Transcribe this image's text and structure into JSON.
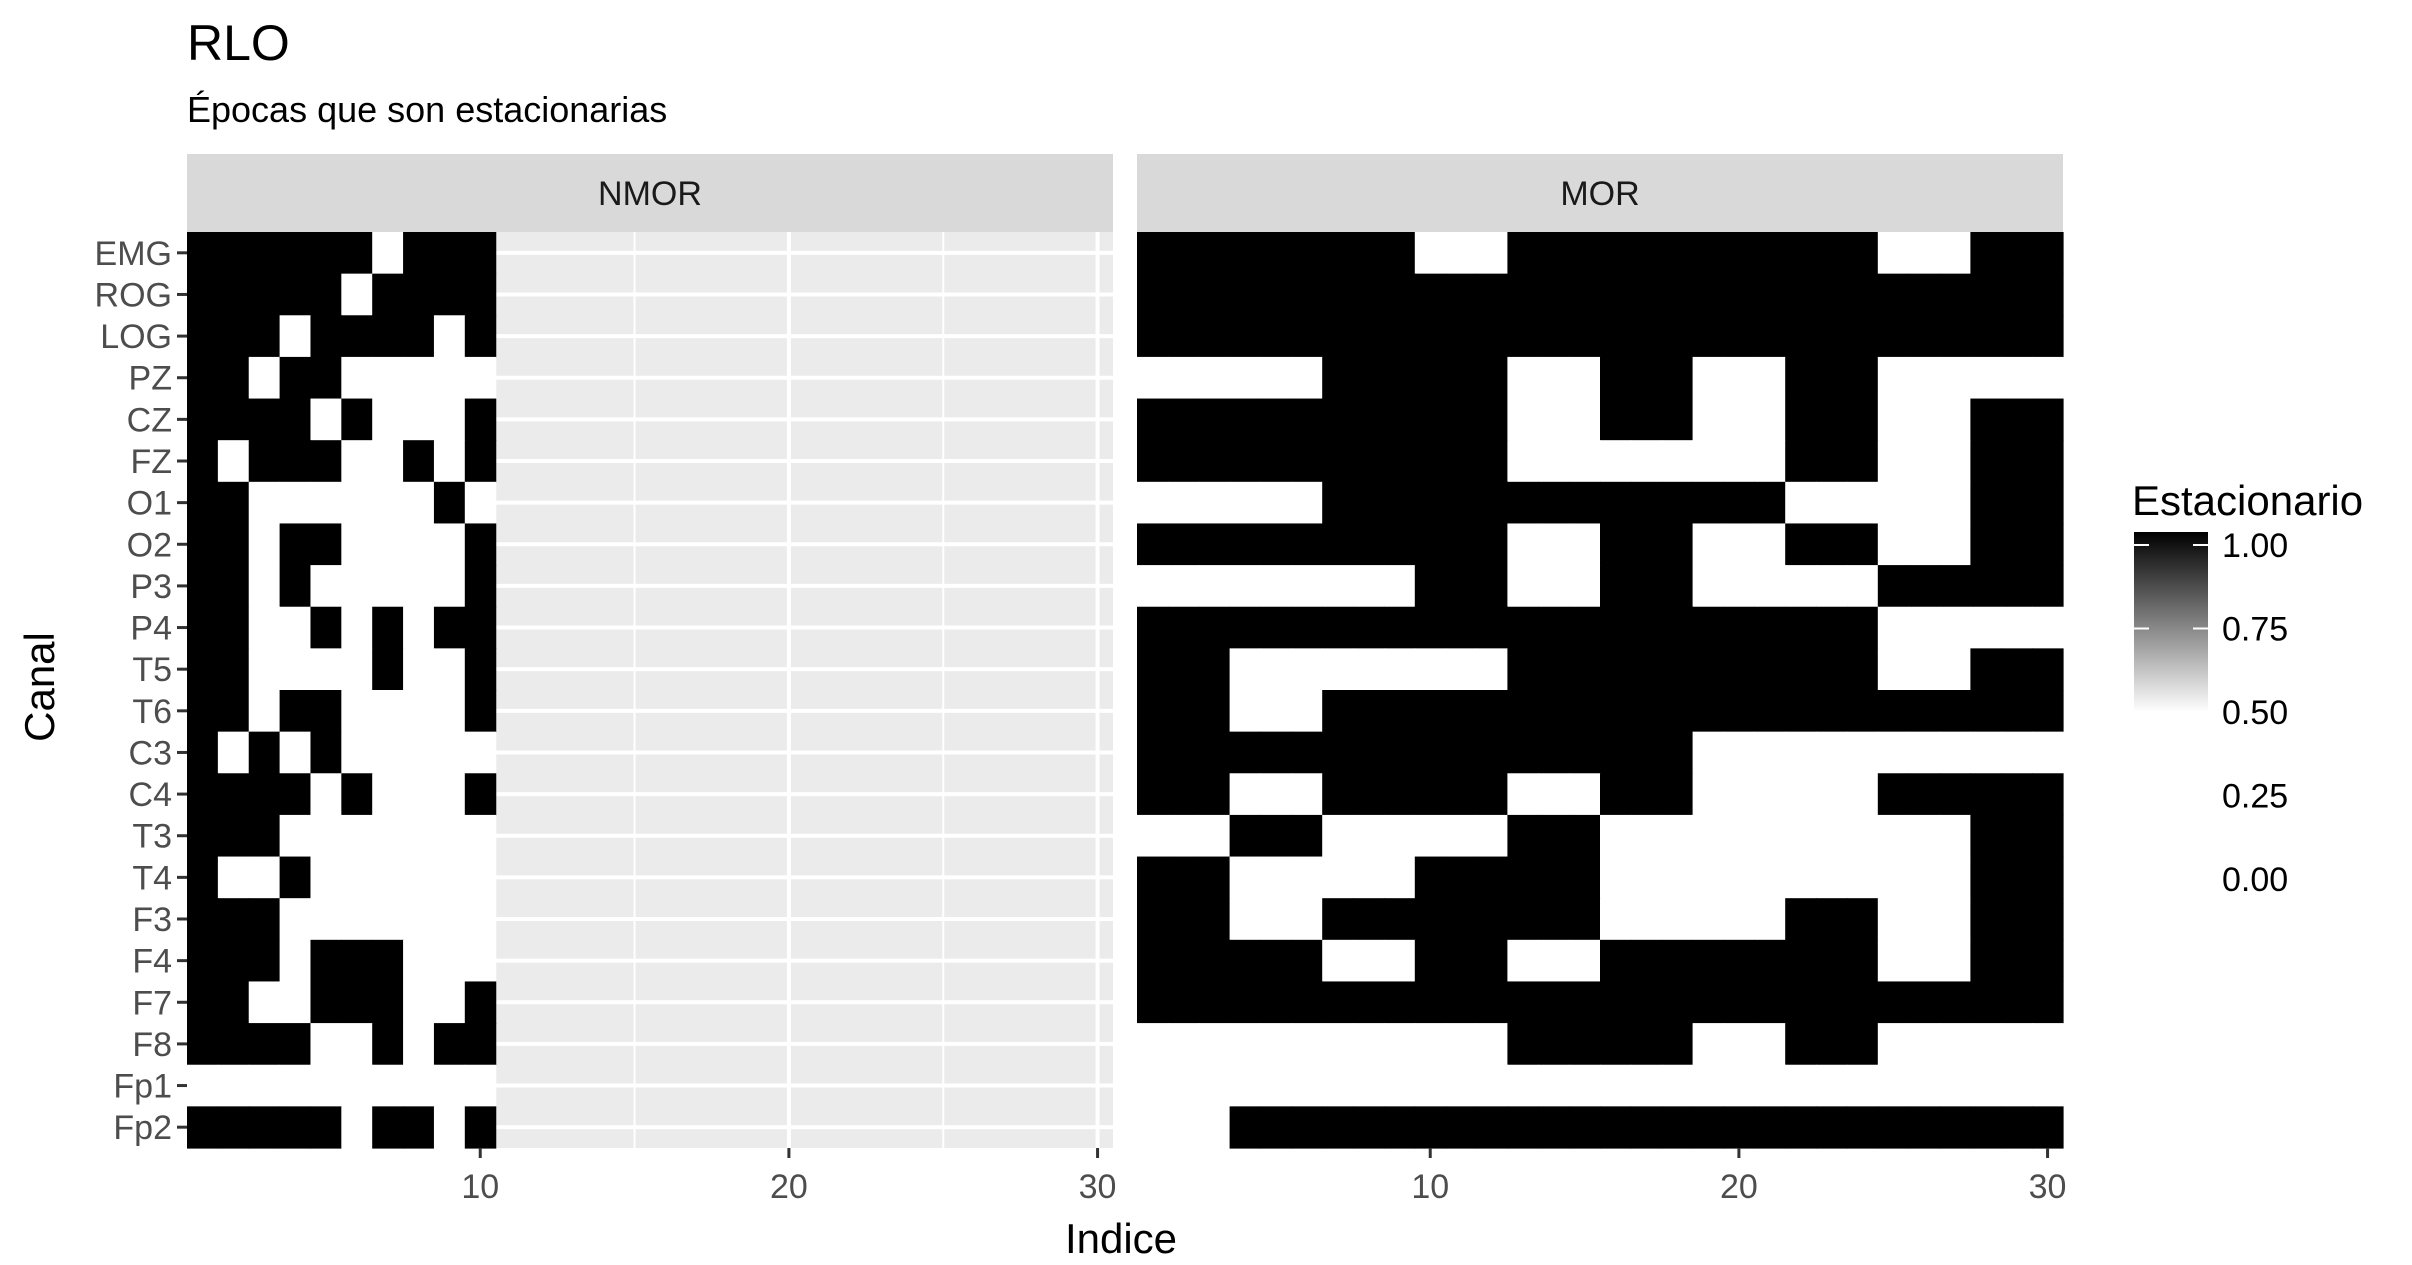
{
  "chart_data": {
    "type": "heatmap",
    "title": "RLO",
    "subtitle": "Épocas que son estacionarias",
    "xlabel": "Indice",
    "ylabel": "Canal",
    "x_ticks": [
      "10",
      "20",
      "30"
    ],
    "x_tick_values": [
      10,
      20,
      30
    ],
    "xlim": [
      0.5,
      30.5
    ],
    "channels": [
      "EMG",
      "ROG",
      "LOG",
      "PZ",
      "CZ",
      "FZ",
      "O1",
      "O2",
      "P3",
      "P4",
      "T5",
      "T6",
      "C3",
      "C4",
      "T3",
      "T4",
      "F3",
      "F4",
      "F7",
      "F8",
      "Fp1",
      "Fp2"
    ],
    "legend": {
      "title": "Estacionario",
      "labels": [
        "1.00",
        "0.75",
        "0.50",
        "0.25",
        "0.00"
      ],
      "gradient_low": "#ffffff",
      "gradient_high": "#000000"
    },
    "colors": {
      "panel_bg": "#ebebeb",
      "strip_bg": "#d9d9d9",
      "grid": "#ffffff",
      "stationary": "#000000",
      "non_stationary": "#ffffff"
    },
    "facets": [
      {
        "name": "NMOR",
        "n_epochs": 10,
        "values": {
          "EMG": [
            1,
            1,
            1,
            1,
            1,
            1,
            0,
            1,
            1,
            1
          ],
          "ROG": [
            1,
            1,
            1,
            1,
            1,
            0,
            1,
            1,
            1,
            1
          ],
          "LOG": [
            1,
            1,
            1,
            0,
            1,
            1,
            1,
            1,
            0,
            1
          ],
          "PZ": [
            1,
            1,
            0,
            1,
            1,
            0,
            0,
            0,
            0,
            0
          ],
          "CZ": [
            1,
            1,
            1,
            1,
            0,
            1,
            0,
            0,
            0,
            1
          ],
          "FZ": [
            1,
            0,
            1,
            1,
            1,
            0,
            0,
            1,
            0,
            1
          ],
          "O1": [
            1,
            1,
            0,
            0,
            0,
            0,
            0,
            0,
            1,
            0
          ],
          "O2": [
            1,
            1,
            0,
            1,
            1,
            0,
            0,
            0,
            0,
            1
          ],
          "P3": [
            1,
            1,
            0,
            1,
            0,
            0,
            0,
            0,
            0,
            1
          ],
          "P4": [
            1,
            1,
            0,
            0,
            1,
            0,
            1,
            0,
            1,
            1
          ],
          "T5": [
            1,
            1,
            0,
            0,
            0,
            0,
            1,
            0,
            0,
            1
          ],
          "T6": [
            1,
            1,
            0,
            1,
            1,
            0,
            0,
            0,
            0,
            1
          ],
          "C3": [
            1,
            0,
            1,
            0,
            1,
            0,
            0,
            0,
            0,
            0
          ],
          "C4": [
            1,
            1,
            1,
            1,
            0,
            1,
            0,
            0,
            0,
            1
          ],
          "T3": [
            1,
            1,
            1,
            0,
            0,
            0,
            0,
            0,
            0,
            0
          ],
          "T4": [
            1,
            0,
            0,
            1,
            0,
            0,
            0,
            0,
            0,
            0
          ],
          "F3": [
            1,
            1,
            1,
            0,
            0,
            0,
            0,
            0,
            0,
            0
          ],
          "F4": [
            1,
            1,
            1,
            0,
            1,
            1,
            1,
            0,
            0,
            0
          ],
          "F7": [
            1,
            1,
            0,
            0,
            1,
            1,
            1,
            0,
            0,
            1
          ],
          "F8": [
            1,
            1,
            1,
            1,
            0,
            0,
            1,
            0,
            1,
            1
          ],
          "Fp1": [
            0,
            0,
            0,
            0,
            0,
            0,
            0,
            0,
            0,
            0
          ],
          "Fp2": [
            1,
            1,
            1,
            1,
            1,
            0,
            1,
            1,
            0,
            1
          ]
        }
      },
      {
        "name": "MOR",
        "n_epochs": 30,
        "values": {
          "EMG": [
            1,
            1,
            1,
            1,
            1,
            1,
            1,
            1,
            1,
            0,
            0,
            0,
            1,
            1,
            1,
            1,
            1,
            1,
            1,
            1,
            1,
            1,
            1,
            1,
            0,
            0,
            0,
            1,
            1,
            1
          ],
          "ROG": [
            1,
            1,
            1,
            1,
            1,
            1,
            1,
            1,
            1,
            1,
            1,
            1,
            1,
            1,
            1,
            1,
            1,
            1,
            1,
            1,
            1,
            1,
            1,
            1,
            1,
            1,
            1,
            1,
            1,
            1
          ],
          "LOG": [
            1,
            1,
            1,
            1,
            1,
            1,
            1,
            1,
            1,
            1,
            1,
            1,
            1,
            1,
            1,
            1,
            1,
            1,
            1,
            1,
            1,
            1,
            1,
            1,
            1,
            1,
            1,
            1,
            1,
            1
          ],
          "PZ": [
            0,
            0,
            0,
            0,
            0,
            0,
            1,
            1,
            1,
            1,
            1,
            1,
            0,
            0,
            0,
            1,
            1,
            1,
            0,
            0,
            0,
            1,
            1,
            1,
            0,
            0,
            0,
            0,
            0,
            0
          ],
          "CZ": [
            1,
            1,
            1,
            1,
            1,
            1,
            1,
            1,
            1,
            1,
            1,
            1,
            0,
            0,
            0,
            1,
            1,
            1,
            0,
            0,
            0,
            1,
            1,
            1,
            0,
            0,
            0,
            1,
            1,
            1
          ],
          "FZ": [
            1,
            1,
            1,
            1,
            1,
            1,
            1,
            1,
            1,
            1,
            1,
            1,
            0,
            0,
            0,
            0,
            0,
            0,
            0,
            0,
            0,
            1,
            1,
            1,
            0,
            0,
            0,
            1,
            1,
            1
          ],
          "O1": [
            0,
            0,
            0,
            0,
            0,
            0,
            1,
            1,
            1,
            1,
            1,
            1,
            1,
            1,
            1,
            1,
            1,
            1,
            1,
            1,
            1,
            0,
            0,
            0,
            0,
            0,
            0,
            1,
            1,
            1
          ],
          "O2": [
            1,
            1,
            1,
            1,
            1,
            1,
            1,
            1,
            1,
            1,
            1,
            1,
            0,
            0,
            0,
            1,
            1,
            1,
            0,
            0,
            0,
            1,
            1,
            1,
            0,
            0,
            0,
            1,
            1,
            1
          ],
          "P3": [
            0,
            0,
            0,
            0,
            0,
            0,
            0,
            0,
            0,
            1,
            1,
            1,
            0,
            0,
            0,
            1,
            1,
            1,
            0,
            0,
            0,
            0,
            0,
            0,
            1,
            1,
            1,
            1,
            1,
            1
          ],
          "P4": [
            1,
            1,
            1,
            1,
            1,
            1,
            1,
            1,
            1,
            1,
            1,
            1,
            1,
            1,
            1,
            1,
            1,
            1,
            1,
            1,
            1,
            1,
            1,
            1,
            0,
            0,
            0,
            0,
            0,
            0
          ],
          "T5": [
            1,
            1,
            1,
            0,
            0,
            0,
            0,
            0,
            0,
            0,
            0,
            0,
            1,
            1,
            1,
            1,
            1,
            1,
            1,
            1,
            1,
            1,
            1,
            1,
            0,
            0,
            0,
            1,
            1,
            1
          ],
          "T6": [
            1,
            1,
            1,
            0,
            0,
            0,
            1,
            1,
            1,
            1,
            1,
            1,
            1,
            1,
            1,
            1,
            1,
            1,
            1,
            1,
            1,
            1,
            1,
            1,
            1,
            1,
            1,
            1,
            1,
            1
          ],
          "C3": [
            1,
            1,
            1,
            1,
            1,
            1,
            1,
            1,
            1,
            1,
            1,
            1,
            1,
            1,
            1,
            1,
            1,
            1,
            0,
            0,
            0,
            0,
            0,
            0,
            0,
            0,
            0,
            0,
            0,
            0
          ],
          "C4": [
            1,
            1,
            1,
            0,
            0,
            0,
            1,
            1,
            1,
            1,
            1,
            1,
            0,
            0,
            0,
            1,
            1,
            1,
            0,
            0,
            0,
            0,
            0,
            0,
            1,
            1,
            1,
            1,
            1,
            1
          ],
          "T3": [
            0,
            0,
            0,
            1,
            1,
            1,
            0,
            0,
            0,
            0,
            0,
            0,
            1,
            1,
            1,
            0,
            0,
            0,
            0,
            0,
            0,
            0,
            0,
            0,
            0,
            0,
            0,
            1,
            1,
            1
          ],
          "T4": [
            1,
            1,
            1,
            0,
            0,
            0,
            0,
            0,
            0,
            1,
            1,
            1,
            1,
            1,
            1,
            0,
            0,
            0,
            0,
            0,
            0,
            0,
            0,
            0,
            0,
            0,
            0,
            1,
            1,
            1
          ],
          "F3": [
            1,
            1,
            1,
            0,
            0,
            0,
            1,
            1,
            1,
            1,
            1,
            1,
            1,
            1,
            1,
            0,
            0,
            0,
            0,
            0,
            0,
            1,
            1,
            1,
            0,
            0,
            0,
            1,
            1,
            1
          ],
          "F4": [
            1,
            1,
            1,
            1,
            1,
            1,
            0,
            0,
            0,
            1,
            1,
            1,
            0,
            0,
            0,
            1,
            1,
            1,
            1,
            1,
            1,
            1,
            1,
            1,
            0,
            0,
            0,
            1,
            1,
            1
          ],
          "F7": [
            1,
            1,
            1,
            1,
            1,
            1,
            1,
            1,
            1,
            1,
            1,
            1,
            1,
            1,
            1,
            1,
            1,
            1,
            1,
            1,
            1,
            1,
            1,
            1,
            1,
            1,
            1,
            1,
            1,
            1
          ],
          "F8": [
            0,
            0,
            0,
            0,
            0,
            0,
            0,
            0,
            0,
            0,
            0,
            0,
            1,
            1,
            1,
            1,
            1,
            1,
            0,
            0,
            0,
            1,
            1,
            1,
            0,
            0,
            0,
            0,
            0,
            0
          ],
          "Fp1": [
            0,
            0,
            0,
            0,
            0,
            0,
            0,
            0,
            0,
            0,
            0,
            0,
            0,
            0,
            0,
            0,
            0,
            0,
            0,
            0,
            0,
            0,
            0,
            0,
            0,
            0,
            0,
            0,
            0,
            0
          ],
          "Fp2": [
            0,
            0,
            0,
            1,
            1,
            1,
            1,
            1,
            1,
            1,
            1,
            1,
            1,
            1,
            1,
            1,
            1,
            1,
            1,
            1,
            1,
            1,
            1,
            1,
            1,
            1,
            1,
            1,
            1,
            1
          ]
        }
      }
    ]
  }
}
